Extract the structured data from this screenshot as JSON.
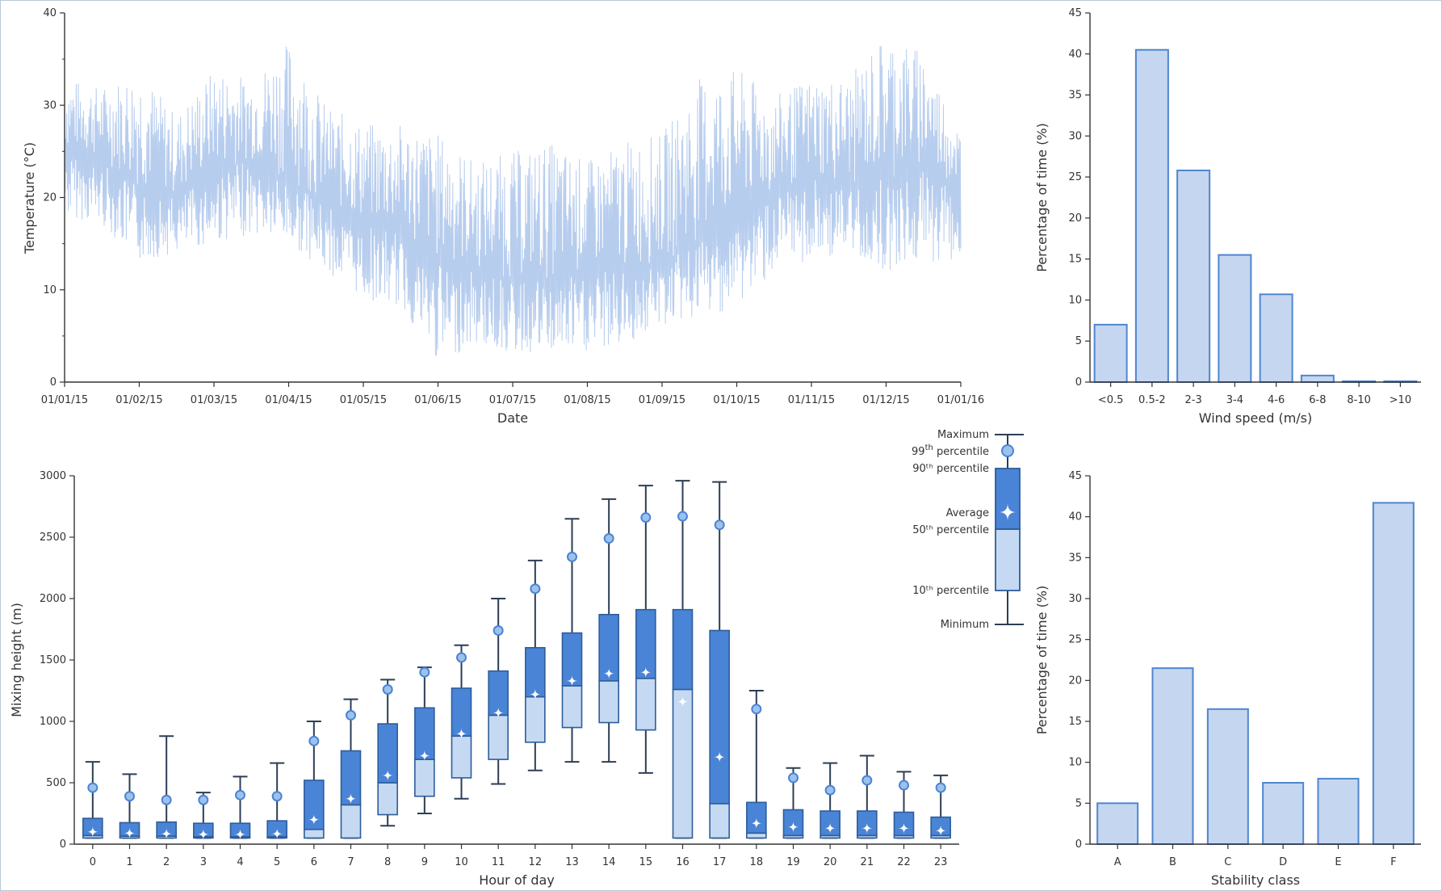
{
  "chart_data": [
    {
      "type": "line",
      "xlabel": "Date",
      "ylabel": "Temperature (°C)",
      "ylim": [
        0,
        40
      ],
      "yticks": [
        0,
        10,
        20,
        30,
        40
      ],
      "xticks": [
        "01/01/15",
        "01/02/15",
        "01/03/15",
        "01/04/15",
        "01/05/15",
        "01/06/15",
        "01/07/15",
        "01/08/15",
        "01/09/15",
        "01/10/15",
        "01/11/15",
        "01/12/15",
        "01/01/16"
      ],
      "series_color": "#b7cdee",
      "x": [
        "01/01/15",
        "15/01/15",
        "01/02/15",
        "15/02/15",
        "01/03/15",
        "15/03/15",
        "01/04/15",
        "15/04/15",
        "01/05/15",
        "15/05/15",
        "01/06/15",
        "15/06/15",
        "01/07/15",
        "15/07/15",
        "01/08/15",
        "15/08/15",
        "01/09/15",
        "15/09/15",
        "01/10/15",
        "15/10/15",
        "01/11/15",
        "15/11/15",
        "01/12/15",
        "15/12/15",
        "01/01/16"
      ],
      "mean": [
        25,
        24,
        21,
        20,
        23,
        24,
        22,
        19,
        17,
        16,
        13,
        12,
        11,
        11,
        12,
        12,
        13,
        15,
        18,
        20,
        22,
        21,
        22,
        23,
        21
      ],
      "min": [
        18,
        17,
        13,
        14,
        15,
        16,
        15,
        12,
        9,
        8,
        2,
        4,
        3,
        3,
        3,
        4,
        6,
        7,
        8,
        12,
        13,
        14,
        12,
        13,
        13
      ],
      "max": [
        33,
        32,
        34,
        29,
        34,
        33,
        37,
        30,
        28,
        28,
        27,
        24,
        25,
        26,
        24,
        26,
        27,
        33,
        34,
        31,
        33,
        33,
        38,
        36,
        27
      ]
    },
    {
      "type": "bar",
      "xlabel": "Wind speed (m/s)",
      "ylabel": "Percentage of time (%)",
      "ylim": [
        0,
        45
      ],
      "yticks": [
        0,
        5,
        10,
        15,
        20,
        25,
        30,
        35,
        40,
        45
      ],
      "categories": [
        "<0.5",
        "0.5-2",
        "2-3",
        "3-4",
        "4-6",
        "6-8",
        "8-10",
        ">10"
      ],
      "values": [
        7,
        40.5,
        25.8,
        15.5,
        10.7,
        0.8,
        0.1,
        0.1
      ]
    },
    {
      "type": "box",
      "xlabel": "Hour of day",
      "ylabel": "Mixing height (m)",
      "ylim": [
        0,
        3000
      ],
      "yticks": [
        0,
        500,
        1000,
        1500,
        2000,
        2500,
        3000
      ],
      "categories": [
        "0",
        "1",
        "2",
        "3",
        "4",
        "5",
        "6",
        "7",
        "8",
        "9",
        "10",
        "11",
        "12",
        "13",
        "14",
        "15",
        "16",
        "17",
        "18",
        "19",
        "20",
        "21",
        "22",
        "23"
      ],
      "min": [
        50,
        50,
        50,
        50,
        50,
        50,
        50,
        50,
        150,
        250,
        370,
        490,
        600,
        670,
        670,
        580,
        50,
        50,
        50,
        50,
        50,
        50,
        50,
        50
      ],
      "p10": [
        50,
        50,
        50,
        50,
        50,
        50,
        50,
        50,
        240,
        390,
        540,
        690,
        830,
        950,
        990,
        930,
        50,
        50,
        50,
        50,
        50,
        50,
        50,
        50
      ],
      "p50": [
        70,
        65,
        65,
        60,
        60,
        60,
        120,
        320,
        500,
        690,
        880,
        1050,
        1200,
        1290,
        1330,
        1350,
        1260,
        330,
        90,
        70,
        70,
        70,
        70,
        70
      ],
      "p90": [
        210,
        175,
        180,
        170,
        170,
        190,
        520,
        760,
        980,
        1110,
        1270,
        1410,
        1600,
        1720,
        1870,
        1910,
        1910,
        1740,
        340,
        280,
        270,
        270,
        260,
        220
      ],
      "p99": [
        460,
        390,
        360,
        360,
        400,
        390,
        840,
        1050,
        1260,
        1400,
        1520,
        1740,
        2080,
        2340,
        2490,
        2660,
        2670,
        2600,
        1100,
        540,
        440,
        520,
        480,
        460
      ],
      "max": [
        670,
        570,
        880,
        420,
        550,
        660,
        1000,
        1180,
        1340,
        1440,
        1620,
        2000,
        2310,
        2650,
        2810,
        2920,
        2960,
        2950,
        1250,
        620,
        660,
        720,
        590,
        560
      ],
      "average": [
        100,
        90,
        85,
        80,
        80,
        85,
        200,
        370,
        560,
        720,
        900,
        1070,
        1220,
        1330,
        1390,
        1400,
        1160,
        710,
        170,
        140,
        130,
        130,
        130,
        110
      ]
    },
    {
      "type": "bar",
      "xlabel": "Stability class",
      "ylabel": "Percentage of time (%)",
      "ylim": [
        0,
        45
      ],
      "yticks": [
        0,
        5,
        10,
        15,
        20,
        25,
        30,
        35,
        40,
        45
      ],
      "categories": [
        "A",
        "B",
        "C",
        "D",
        "E",
        "F"
      ],
      "values": [
        5,
        21.5,
        16.5,
        7.5,
        8,
        41.7
      ]
    }
  ],
  "legend": {
    "maximum": "Maximum",
    "p99": "99th percentile",
    "p99_num": "99",
    "p99_sup": "th",
    "p99_word": "percentile",
    "p90": "90ᵗʰ percentile",
    "average": "Average",
    "p50": "50ᵗʰ percentile",
    "p10": "10ᵗʰ percentile",
    "minimum": "Minimum"
  },
  "colors": {
    "box_upper": "#4a84d6",
    "box_lower": "#c5d9f2",
    "box_stroke": "#2e5d9a",
    "whisker": "#2c3e55",
    "marker_fill": "#9cc2ec"
  }
}
